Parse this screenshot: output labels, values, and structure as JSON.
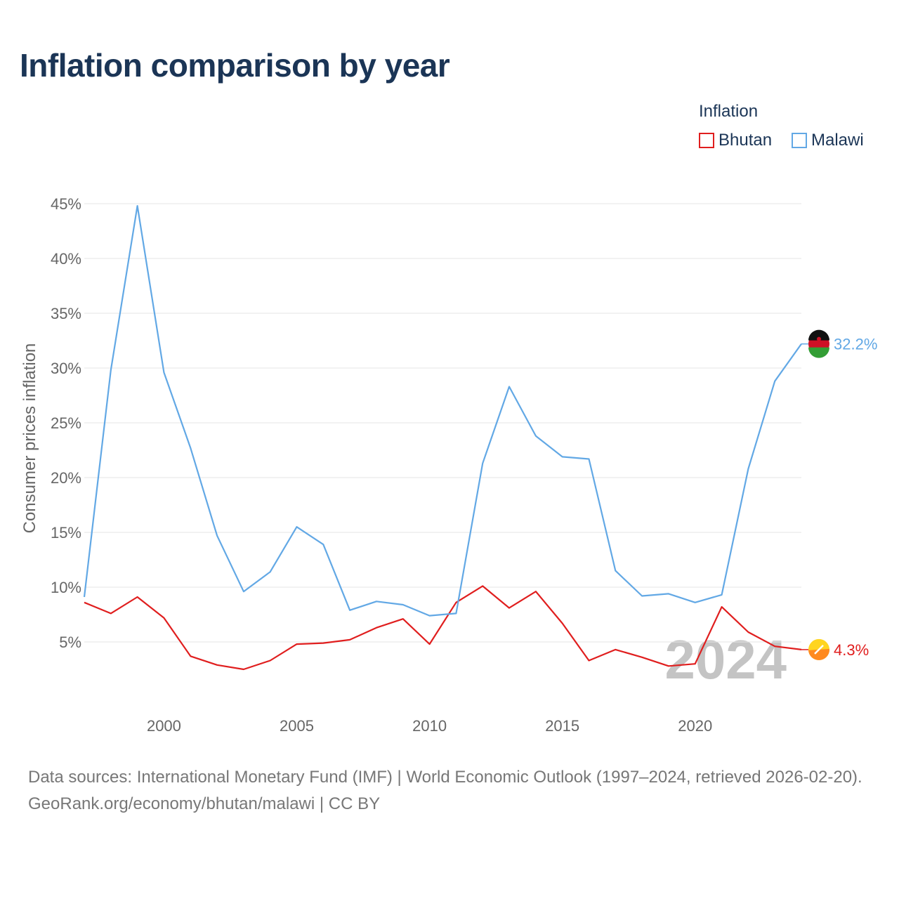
{
  "title": "Inflation comparison by year",
  "legend": {
    "title": "Inflation",
    "items": [
      {
        "name": "Bhutan",
        "color": "#e01e1e"
      },
      {
        "name": "Malawi",
        "color": "#62a8e5"
      }
    ]
  },
  "chart_data": {
    "type": "line",
    "title": "Inflation comparison by year",
    "xlabel": "",
    "ylabel": "Consumer prices inflation",
    "xlim": [
      1997,
      2024
    ],
    "ylim": [
      0,
      45
    ],
    "x_ticks": [
      2000,
      2005,
      2010,
      2015,
      2020
    ],
    "x_tick_labels": [
      "2000",
      "2005",
      "2010",
      "2015",
      "2020"
    ],
    "y_ticks": [
      5,
      10,
      15,
      20,
      25,
      30,
      35,
      40,
      45
    ],
    "y_tick_labels": [
      "5%",
      "10%",
      "15%",
      "20%",
      "25%",
      "30%",
      "35%",
      "40%",
      "45%"
    ],
    "grid": true,
    "legend_position": "top-right",
    "year_watermark": "2024",
    "x": [
      1997,
      1998,
      1999,
      2000,
      2001,
      2002,
      2003,
      2004,
      2005,
      2006,
      2007,
      2008,
      2009,
      2010,
      2011,
      2012,
      2013,
      2014,
      2015,
      2016,
      2017,
      2018,
      2019,
      2020,
      2021,
      2022,
      2023,
      2024
    ],
    "series": [
      {
        "name": "Bhutan",
        "color": "#e01e1e",
        "end_label": "4.3%",
        "flag_icon": "bhutan-flag-icon",
        "values": [
          8.6,
          7.6,
          9.1,
          7.2,
          3.7,
          2.9,
          2.5,
          3.3,
          4.8,
          4.9,
          5.2,
          6.3,
          7.1,
          4.8,
          8.6,
          10.1,
          8.1,
          9.6,
          6.7,
          3.3,
          4.3,
          3.6,
          2.8,
          3.0,
          8.2,
          5.9,
          4.6,
          4.3
        ]
      },
      {
        "name": "Malawi",
        "color": "#62a8e5",
        "end_label": "32.2%",
        "flag_icon": "malawi-flag-icon",
        "values": [
          9.1,
          29.8,
          44.8,
          29.6,
          22.7,
          14.7,
          9.6,
          11.4,
          15.5,
          13.9,
          7.9,
          8.7,
          8.4,
          7.4,
          7.6,
          21.3,
          28.3,
          23.8,
          21.9,
          21.7,
          11.5,
          9.2,
          9.4,
          8.6,
          9.3,
          20.8,
          28.8,
          32.2
        ]
      }
    ]
  },
  "footer": {
    "sources_line": "Data sources: International Monetary Fund (IMF) | World Economic Outlook (1997–2024, retrieved 2026-02-20).",
    "credit_line": "GeoRank.org/economy/bhutan/malawi | CC BY"
  }
}
